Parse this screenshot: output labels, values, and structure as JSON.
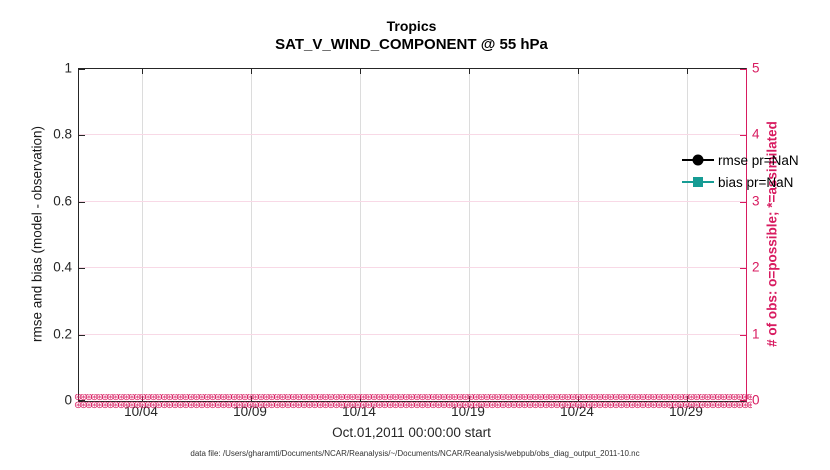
{
  "title": {
    "line1": "Tropics",
    "line2": "SAT_V_WIND_COMPONENT @ 55 hPa"
  },
  "axes": {
    "left": {
      "label": "rmse and bias (model - observation)",
      "ticks": [
        "0",
        "0.2",
        "0.4",
        "0.6",
        "0.8",
        "1"
      ],
      "color": "#262626"
    },
    "right": {
      "label": "# of obs: o=possible; *=assimilated",
      "ticks": [
        "0",
        "1",
        "2",
        "3",
        "4",
        "5"
      ],
      "color": "#d81b60"
    },
    "x": {
      "label": "Oct.01,2011 00:00:00 start",
      "ticks": [
        "10/04",
        "10/09",
        "10/14",
        "10/19",
        "10/24",
        "10/29"
      ]
    }
  },
  "legend": {
    "items": [
      {
        "label": "rmse pr=NaN",
        "color": "#000000",
        "marker": "circle"
      },
      {
        "label": "bias pr=NaN",
        "color": "#169c94",
        "marker": "square"
      }
    ]
  },
  "obs_marker_glyph": "⊛",
  "footnote": "data file: /Users/gharamti/Documents/NCAR/Reanalysis/~/Documents/NCAR/Reanalysis/webpub/obs_diag_output_2011-10.nc",
  "colors": {
    "obs_axis": "#d81b60",
    "rmse": "#000000",
    "bias": "#169c94",
    "grid_v": "#dcdcdc",
    "grid_h": "#f8d9e6",
    "axis_dark": "#262626"
  },
  "chart_data": {
    "type": "line",
    "title": "Tropics",
    "subtitle": "SAT_V_WIND_COMPONENT @ 55 hPa",
    "xlabel": "Oct.01,2011 00:00:00 start",
    "ylabel_left": "rmse and bias (model - observation)",
    "ylabel_right": "# of obs: o=possible; *=assimilated",
    "ylim_left": [
      0,
      1
    ],
    "ylim_right": [
      0,
      5
    ],
    "x_tick_labels": [
      "10/04",
      "10/09",
      "10/14",
      "10/19",
      "10/24",
      "10/29"
    ],
    "x_range_days_oct_2011": [
      1,
      31.6
    ],
    "grid": true,
    "legend_position": "upper right",
    "series": [
      {
        "name": "rmse pr=NaN",
        "axis": "left",
        "values": "NaN",
        "note": "no curve drawn (all NaN)"
      },
      {
        "name": "bias pr=NaN",
        "axis": "left",
        "values": "NaN",
        "note": "no curve drawn (all NaN)"
      },
      {
        "name": "# of obs possible (o)",
        "axis": "right",
        "constant_value": 0,
        "note": "dense o markers at y=0 across entire date range"
      },
      {
        "name": "# of obs assimilated (*)",
        "axis": "right",
        "constant_value": 0,
        "note": "dense * markers at y=0 across entire date range"
      }
    ]
  }
}
